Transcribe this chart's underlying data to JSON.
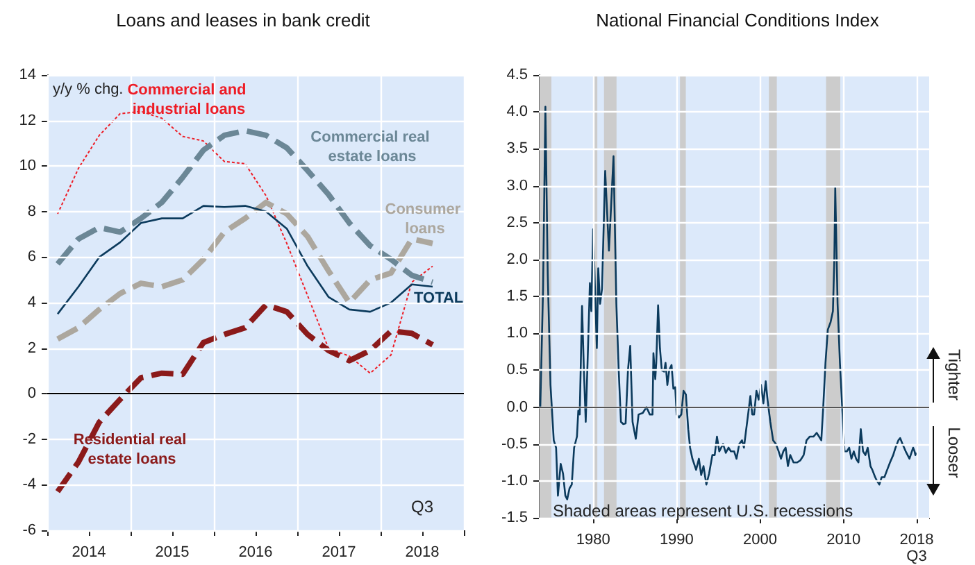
{
  "chart_data": [
    {
      "type": "line",
      "title": "Loans and leases in bank credit",
      "ylabel": "y/y % chg.",
      "annotations": [
        "Q3"
      ],
      "x": [
        2014.125,
        2014.375,
        2014.625,
        2014.875,
        2015.125,
        2015.375,
        2015.625,
        2015.875,
        2016.125,
        2016.375,
        2016.625,
        2016.875,
        2017.125,
        2017.375,
        2017.625,
        2017.875,
        2018.125,
        2018.375,
        2018.625
      ],
      "series": [
        {
          "name": "Commercial and industrial loans",
          "color": "#ee1c25",
          "line_style": "dashed",
          "values": [
            7.9,
            9.9,
            11.35,
            12.3,
            12.4,
            12.1,
            11.3,
            11.1,
            10.2,
            10.1,
            8.7,
            6.6,
            4.3,
            2.0,
            1.65,
            0.9,
            1.7,
            4.9,
            5.6
          ]
        },
        {
          "name": "Commercial real estate loans",
          "color": "#6b8796",
          "line_style": "dashed",
          "values": [
            5.7,
            6.8,
            7.3,
            7.1,
            7.7,
            8.4,
            9.5,
            10.7,
            11.35,
            11.55,
            11.35,
            10.8,
            9.8,
            8.75,
            7.5,
            6.5,
            5.9,
            5.2,
            4.9
          ]
        },
        {
          "name": "Consumer loans",
          "color": "#aca79e",
          "line_style": "dashed",
          "values": [
            2.4,
            2.9,
            3.7,
            4.4,
            4.85,
            4.7,
            5.0,
            5.9,
            7.1,
            7.7,
            8.4,
            7.9,
            6.9,
            5.4,
            4.0,
            5.0,
            5.3,
            6.8,
            6.6
          ]
        },
        {
          "name": "TOTAL",
          "color": "#0b3a5c",
          "line_style": "solid",
          "values": [
            3.5,
            4.7,
            6.0,
            6.65,
            7.5,
            7.7,
            7.7,
            8.25,
            8.2,
            8.25,
            8.0,
            7.25,
            5.6,
            4.25,
            3.7,
            3.6,
            4.0,
            4.8,
            4.7
          ]
        },
        {
          "name": "Residential real estate loans",
          "color": "#8b1a1a",
          "line_style": "dashed",
          "values": [
            -4.3,
            -3.0,
            -1.25,
            -0.25,
            0.7,
            0.9,
            0.85,
            2.25,
            2.6,
            2.9,
            3.9,
            3.6,
            2.6,
            1.9,
            1.45,
            1.9,
            2.75,
            2.65,
            2.15
          ]
        }
      ],
      "xlim": [
        2014,
        2019
      ],
      "xticks": [
        {
          "value": 2014,
          "label": null
        },
        {
          "value": 2014.5,
          "label": "2014"
        },
        {
          "value": 2015,
          "label": null
        },
        {
          "value": 2015.5,
          "label": "2015"
        },
        {
          "value": 2016,
          "label": null
        },
        {
          "value": 2016.5,
          "label": "2016"
        },
        {
          "value": 2017,
          "label": null
        },
        {
          "value": 2017.5,
          "label": "2017"
        },
        {
          "value": 2018,
          "label": null
        },
        {
          "value": 2018.5,
          "label": "2018"
        },
        {
          "value": 2019,
          "label": null
        }
      ],
      "ylim": [
        -6,
        14
      ],
      "yticks": [
        -6,
        -4,
        -2,
        0,
        2,
        4,
        6,
        8,
        10,
        12,
        14
      ],
      "ref_lines": [
        {
          "axis": "y",
          "value": 0,
          "color": "#000000"
        }
      ],
      "grid": true,
      "legend": false,
      "marker": "none"
    },
    {
      "type": "line",
      "title": "National Financial Conditions Index",
      "annotations": [
        "Shaded areas represent U.S. recessions",
        "Tighter",
        "Looser"
      ],
      "x": [
        1973.67,
        1974.0,
        1974.28,
        1974.56,
        1974.89,
        1975.28,
        1975.56,
        1975.78,
        1976.11,
        1976.39,
        1976.67,
        1976.89,
        1977.17,
        1977.44,
        1977.72,
        1978.06,
        1978.22,
        1978.39,
        1978.67,
        1978.89,
        1979.11,
        1979.33,
        1979.61,
        1979.78,
        1980.0,
        1980.22,
        1980.44,
        1980.61,
        1980.83,
        1981.06,
        1981.44,
        1981.89,
        1982.44,
        1982.78,
        1983.06,
        1983.33,
        1983.61,
        1983.89,
        1984.17,
        1984.44,
        1984.72,
        1985.11,
        1985.44,
        1985.94,
        1986.39,
        1986.78,
        1987.11,
        1987.22,
        1987.44,
        1987.56,
        1987.78,
        1988.0,
        1988.22,
        1988.5,
        1988.67,
        1988.89,
        1989.11,
        1989.39,
        1989.61,
        1989.83,
        1990.0,
        1990.28,
        1990.56,
        1990.83,
        1991.11,
        1991.39,
        1991.61,
        1991.89,
        1992.33,
        1992.67,
        1992.94,
        1993.22,
        1993.56,
        1993.89,
        1994.28,
        1994.56,
        1994.83,
        1995.11,
        1995.56,
        1995.89,
        1996.22,
        1996.5,
        1996.89,
        1997.17,
        1997.5,
        1997.83,
        1998.06,
        1998.28,
        1998.56,
        1998.83,
        1999.06,
        1999.28,
        1999.56,
        1999.83,
        2000.11,
        2000.39,
        2000.67,
        2000.89,
        2001.22,
        2001.56,
        2001.89,
        2002.22,
        2002.5,
        2002.78,
        2003.06,
        2003.33,
        2003.61,
        2004.0,
        2004.44,
        2004.83,
        2005.22,
        2005.56,
        2005.94,
        2006.39,
        2006.78,
        2007.06,
        2007.33,
        2007.56,
        2007.83,
        2008.11,
        2008.44,
        2008.72,
        2008.89,
        2009.0,
        2009.28,
        2009.56,
        2009.83,
        2010.11,
        2010.39,
        2010.67,
        2010.94,
        2011.22,
        2011.5,
        2011.78,
        2012.06,
        2012.33,
        2012.61,
        2012.89,
        2013.22,
        2013.44,
        2013.78,
        2014.0,
        2014.28,
        2014.56,
        2014.89,
        2015.22,
        2015.56,
        2015.94,
        2016.22,
        2016.56,
        2016.78,
        2017.06,
        2017.44,
        2017.89,
        2018.33,
        2018.5,
        2018.6,
        2018.75
      ],
      "series": [
        {
          "color": "#0b3a5c",
          "line_style": "solid",
          "values": [
            0.0,
            1.6,
            4.07,
            1.8,
            0.3,
            -0.45,
            -0.55,
            -1.2,
            -0.77,
            -0.9,
            -1.2,
            -1.25,
            -1.1,
            -1.05,
            -0.55,
            -0.4,
            -0.05,
            -0.1,
            1.37,
            0.5,
            -0.2,
            0.6,
            1.68,
            1.3,
            2.41,
            1.6,
            0.8,
            1.88,
            1.4,
            1.6,
            3.2,
            2.12,
            3.4,
            1.4,
            0.5,
            -0.2,
            -0.23,
            -0.22,
            0.5,
            0.83,
            -0.2,
            -0.43,
            -0.1,
            -0.08,
            0.0,
            -0.1,
            -0.1,
            0.73,
            0.38,
            0.6,
            1.38,
            0.8,
            0.5,
            0.48,
            0.6,
            0.3,
            0.5,
            0.57,
            0.25,
            0.27,
            -0.1,
            -0.14,
            -0.1,
            0.22,
            0.17,
            -0.3,
            -0.55,
            -0.7,
            -0.85,
            -0.7,
            -0.92,
            -0.8,
            -1.05,
            -0.9,
            -0.65,
            -0.65,
            -0.4,
            -0.6,
            -0.5,
            -0.62,
            -0.55,
            -0.6,
            -0.6,
            -0.7,
            -0.5,
            -0.45,
            -0.55,
            -0.35,
            -0.1,
            0.15,
            -0.1,
            -0.1,
            0.22,
            0.1,
            0.3,
            0.05,
            0.35,
            0.1,
            -0.2,
            -0.45,
            -0.5,
            -0.6,
            -0.7,
            -0.6,
            -0.55,
            -0.8,
            -0.65,
            -0.75,
            -0.75,
            -0.72,
            -0.65,
            -0.45,
            -0.4,
            -0.4,
            -0.35,
            -0.4,
            -0.45,
            0.0,
            0.6,
            1.05,
            1.15,
            1.3,
            2.0,
            2.97,
            1.4,
            0.6,
            0.0,
            -0.6,
            -0.6,
            -0.55,
            -0.7,
            -0.6,
            -0.7,
            -0.75,
            -0.3,
            -0.6,
            -0.65,
            -0.55,
            -0.8,
            -0.85,
            -0.95,
            -1.0,
            -1.05,
            -0.95,
            -0.95,
            -0.85,
            -0.75,
            -0.65,
            -0.55,
            -0.45,
            -0.42,
            -0.5,
            -0.6,
            -0.7,
            -0.55,
            -0.6,
            -0.65,
            -0.62
          ]
        }
      ],
      "xlim": [
        1973.5,
        2020.25
      ],
      "xticks": [
        1980,
        1990,
        2000,
        2010,
        {
          "value": 2018.75,
          "label": "2018\nQ3"
        }
      ],
      "ylim": [
        -1.5,
        4.5
      ],
      "yticks": [
        {
          "value": -1.5,
          "label": "-1.5"
        },
        {
          "value": -1,
          "label": "-1.0"
        },
        {
          "value": -0.5,
          "label": "-0.5"
        },
        {
          "value": 0,
          "label": "0.0"
        },
        {
          "value": 0.5,
          "label": "0.5"
        },
        {
          "value": 1,
          "label": "1.0"
        },
        {
          "value": 1.5,
          "label": "1.5"
        },
        {
          "value": 2,
          "label": "2.0"
        },
        {
          "value": 2.5,
          "label": "2.5"
        },
        {
          "value": 3,
          "label": "3.0"
        },
        {
          "value": 3.5,
          "label": "3.5"
        },
        {
          "value": 4,
          "label": "4.0"
        },
        {
          "value": 4.5,
          "label": "4.5"
        }
      ],
      "bands": [
        {
          "axis": "x",
          "from": 1973.55,
          "to": 1975.0,
          "color": "#cccccc"
        },
        {
          "axis": "x",
          "from": 1980.0,
          "to": 1980.5,
          "color": "#cccccc"
        },
        {
          "axis": "x",
          "from": 1981.3,
          "to": 1982.8,
          "color": "#cccccc"
        },
        {
          "axis": "x",
          "from": 1990.4,
          "to": 1991.1,
          "color": "#cccccc"
        },
        {
          "axis": "x",
          "from": 2001.05,
          "to": 2002.0,
          "color": "#cccccc"
        },
        {
          "axis": "x",
          "from": 2007.9,
          "to": 2009.6,
          "color": "#cccccc"
        }
      ],
      "ref_lines": [
        {
          "axis": "y",
          "value": 0,
          "color": "#555555"
        }
      ],
      "grid": true,
      "legend": false,
      "marker": "none"
    }
  ]
}
